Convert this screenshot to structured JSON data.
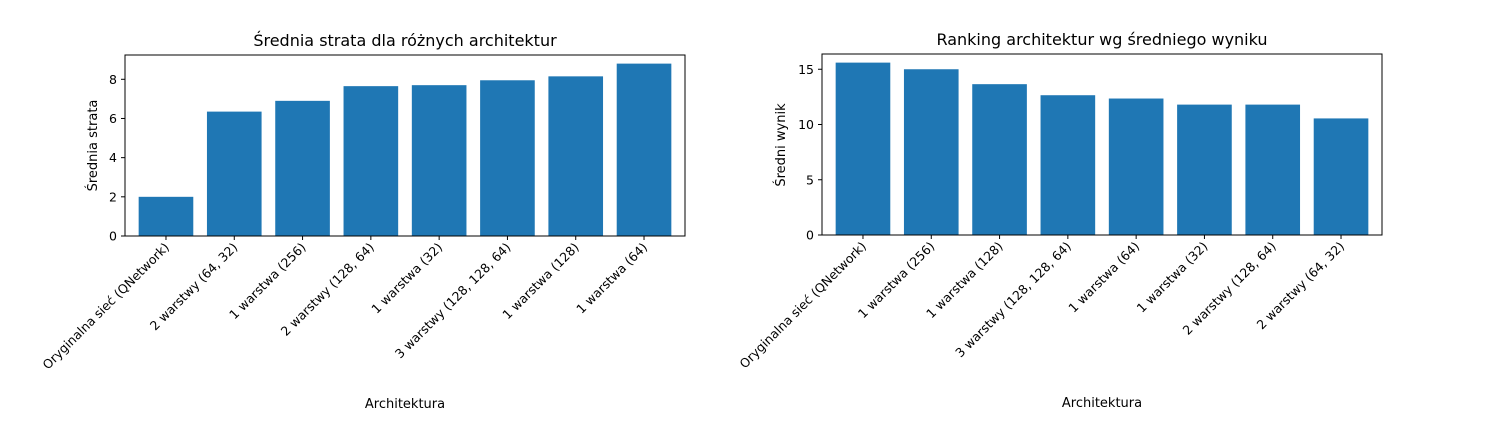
{
  "chart_data": [
    {
      "type": "bar",
      "title": "Średnia strata dla różnych architektur",
      "xlabel": "Architektura",
      "ylabel": "Średnia strata",
      "categories": [
        "Oryginalna sieć (QNetwork)",
        "2 warstwy (64, 32)",
        "1 warstwa (256)",
        "2 warstwy (128, 64)",
        "1 warstwa (32)",
        "3 warstwy (128, 128, 64)",
        "1 warstwa (128)",
        "1 warstwa (64)"
      ],
      "values": [
        2.0,
        6.35,
        6.9,
        7.65,
        7.7,
        7.95,
        8.15,
        8.8
      ],
      "ylim": [
        0,
        9.24
      ],
      "yticks": [
        0,
        2,
        4,
        6,
        8
      ],
      "color": "#1f77b4",
      "grid": false
    },
    {
      "type": "bar",
      "title": "Ranking architektur wg średniego wyniku",
      "xlabel": "Architektura",
      "ylabel": "Średni wynik",
      "categories": [
        "Oryginalna sieć (QNetwork)",
        "1 warstwa (256)",
        "1 warstwa (128)",
        "3 warstwy (128, 128, 64)",
        "1 warstwa (64)",
        "1 warstwa (32)",
        "2 warstwy (128, 64)",
        "2 warstwy (64, 32)"
      ],
      "values": [
        15.6,
        15.0,
        13.65,
        12.65,
        12.35,
        11.8,
        11.8,
        10.55
      ],
      "ylim": [
        0,
        16.38
      ],
      "yticks": [
        0,
        5,
        10,
        15
      ],
      "color": "#1f77b4",
      "grid": false
    }
  ]
}
